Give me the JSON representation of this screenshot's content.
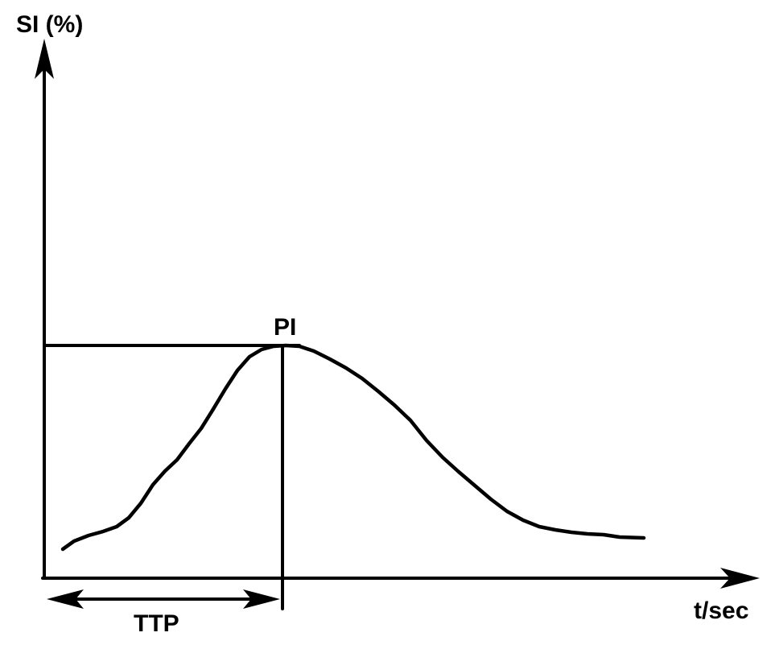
{
  "labels": {
    "y_axis": "SI (%)",
    "x_axis": "t/sec",
    "peak": "PI",
    "time_to_peak": "TTP"
  },
  "colors": {
    "ink": "#000000",
    "background": "#ffffff"
  }
}
